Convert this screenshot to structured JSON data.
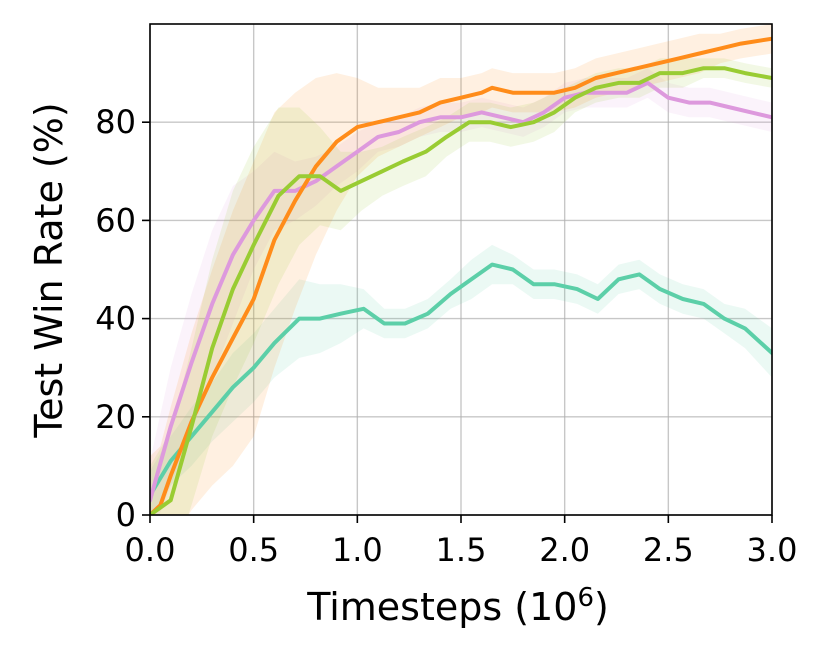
{
  "chart_data": {
    "type": "line",
    "title": "",
    "xlabel": "Timesteps (10",
    "xlabel_sup": "6",
    "xlabel_end": ")",
    "ylabel": "Test Win Rate (%)",
    "xlim": [
      0.0,
      3.0
    ],
    "ylim": [
      0,
      100
    ],
    "xticks": [
      0.0,
      0.5,
      1.0,
      1.5,
      2.0,
      2.5,
      3.0
    ],
    "xtick_labels": [
      "0.0",
      "0.5",
      "1.0",
      "1.5",
      "2.0",
      "2.5",
      "3.0"
    ],
    "yticks": [
      0,
      20,
      40,
      60,
      80
    ],
    "ytick_labels": [
      "0",
      "20",
      "40",
      "60",
      "80"
    ],
    "grid": true,
    "legend": "none",
    "series": [
      {
        "color": "#5ccfa8",
        "band_opacity": 0.12,
        "x": [
          0.0,
          0.1,
          0.2,
          0.3,
          0.4,
          0.5,
          0.6,
          0.72,
          0.82,
          0.92,
          1.03,
          1.13,
          1.23,
          1.34,
          1.45,
          1.55,
          1.65,
          1.75,
          1.85,
          1.95,
          2.06,
          2.16,
          2.26,
          2.36,
          2.46,
          2.57,
          2.67,
          2.77,
          2.87,
          3.0
        ],
        "y": [
          4,
          11,
          16,
          21,
          26,
          30,
          35,
          40,
          40,
          41,
          42,
          39,
          39,
          41,
          45,
          48,
          51,
          50,
          47,
          47,
          46,
          44,
          48,
          49,
          46,
          44,
          43,
          40,
          38,
          33
        ],
        "band": [
          5,
          5,
          6,
          6,
          7,
          7,
          7,
          8,
          7,
          6,
          4,
          3,
          3,
          3,
          3,
          4,
          4,
          3,
          3,
          3,
          3,
          3,
          3,
          3,
          3,
          3,
          3,
          3,
          4,
          5
        ]
      },
      {
        "color": "#dd99dd",
        "band_opacity": 0.12,
        "x": [
          0.0,
          0.1,
          0.2,
          0.3,
          0.4,
          0.5,
          0.6,
          0.7,
          0.8,
          0.9,
          1.0,
          1.1,
          1.2,
          1.3,
          1.4,
          1.5,
          1.6,
          1.7,
          1.8,
          1.9,
          2.0,
          2.1,
          2.2,
          2.3,
          2.4,
          2.5,
          2.6,
          2.7,
          2.8,
          2.9,
          3.0
        ],
        "y": [
          3,
          18,
          31,
          43,
          53,
          60,
          66,
          66,
          68,
          71,
          74,
          77,
          78,
          80,
          81,
          81,
          82,
          81,
          80,
          82,
          85,
          86,
          86,
          86,
          88,
          85,
          84,
          84,
          83,
          82,
          81
        ],
        "band": [
          8,
          12,
          14,
          15,
          14,
          10,
          8,
          6,
          5,
          4,
          4,
          3,
          3,
          3,
          3,
          3,
          3,
          3,
          3,
          3,
          3,
          3,
          3,
          3,
          3,
          3,
          3,
          3,
          3,
          3,
          3
        ]
      },
      {
        "color": "#ff8c1a",
        "band_opacity": 0.13,
        "x": [
          0.0,
          0.05,
          0.1,
          0.2,
          0.3,
          0.4,
          0.5,
          0.6,
          0.7,
          0.8,
          0.9,
          1.0,
          1.1,
          1.2,
          1.3,
          1.4,
          1.5,
          1.6,
          1.65,
          1.75,
          1.85,
          1.95,
          2.05,
          2.15,
          2.25,
          2.35,
          2.45,
          2.55,
          2.65,
          2.75,
          2.85,
          3.0
        ],
        "y": [
          0,
          2,
          8,
          19,
          28,
          36,
          44,
          56,
          64,
          71,
          76,
          79,
          80,
          81,
          82,
          84,
          85,
          86,
          87,
          86,
          86,
          86,
          87,
          89,
          90,
          91,
          92,
          93,
          94,
          95,
          96,
          97
        ],
        "band": [
          12,
          12,
          14,
          18,
          22,
          26,
          28,
          26,
          22,
          18,
          14,
          10,
          7,
          6,
          5,
          5,
          4,
          4,
          4,
          4,
          4,
          4,
          4,
          4,
          4,
          4,
          4,
          4,
          4,
          3,
          3,
          3
        ]
      },
      {
        "color": "#99cc33",
        "band_opacity": 0.13,
        "x": [
          0.0,
          0.1,
          0.2,
          0.3,
          0.4,
          0.5,
          0.62,
          0.72,
          0.82,
          0.92,
          1.02,
          1.12,
          1.22,
          1.33,
          1.43,
          1.54,
          1.64,
          1.74,
          1.85,
          1.95,
          2.05,
          2.15,
          2.26,
          2.36,
          2.46,
          2.57,
          2.67,
          2.77,
          2.87,
          3.0
        ],
        "y": [
          0,
          3,
          18,
          34,
          46,
          55,
          65,
          69,
          69,
          66,
          68,
          70,
          72,
          74,
          77,
          80,
          80,
          79,
          80,
          82,
          85,
          87,
          88,
          88,
          90,
          90,
          91,
          91,
          90,
          89
        ],
        "band": [
          10,
          14,
          16,
          18,
          20,
          20,
          18,
          14,
          10,
          8,
          6,
          5,
          5,
          5,
          4,
          4,
          4,
          4,
          4,
          4,
          3,
          3,
          3,
          3,
          3,
          3,
          2,
          2,
          2,
          2
        ]
      }
    ]
  }
}
